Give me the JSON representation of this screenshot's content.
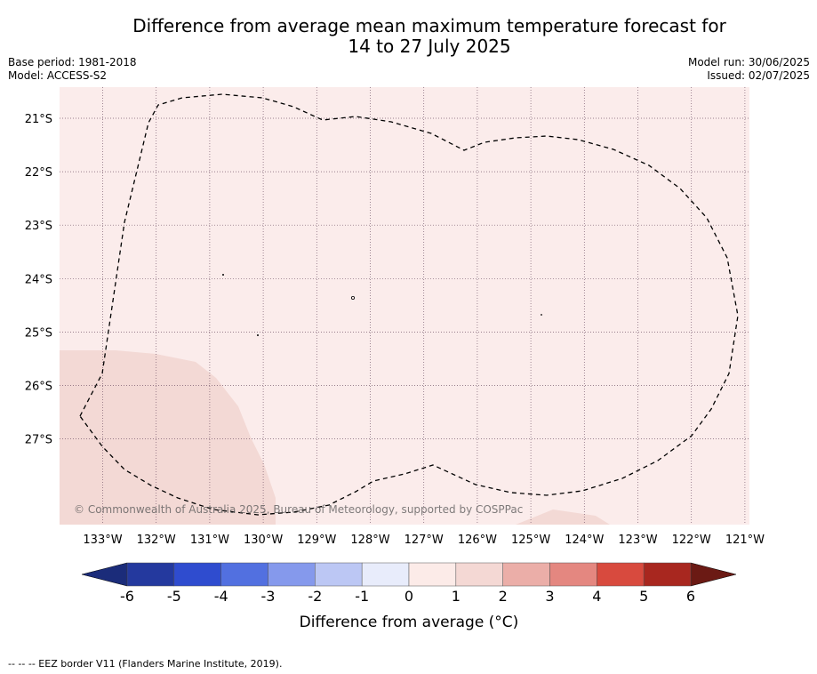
{
  "title_line1": "Difference from average mean maximum temperature forecast for",
  "title_line2": "14 to 27 July 2025",
  "base_period": "Base period: 1981-2018",
  "model": "Model: ACCESS-S2",
  "model_run": "Model run: 30/06/2025",
  "issued": "Issued: 02/07/2025",
  "map": {
    "lon_labels": [
      "133°W",
      "132°W",
      "131°W",
      "130°W",
      "129°W",
      "128°W",
      "127°W",
      "126°W",
      "125°W",
      "124°W",
      "123°W",
      "122°W",
      "121°W"
    ],
    "lat_labels": [
      "21°S",
      "22°S",
      "23°S",
      "24°S",
      "25°S",
      "26°S",
      "27°S"
    ],
    "background_category": "0 to 1",
    "patch_category": "1 to 2",
    "copyright": "© Commonwealth of Australia 2025, Bureau of Meteorology, supported by COSPPac",
    "colors": {
      "background": "#fbeceb",
      "patch": "#f3d9d5",
      "grid": "#7a5a6e",
      "eez": "#000000"
    }
  },
  "colorbar": {
    "title": "Difference from average (°C)",
    "ticks": [
      "-6",
      "-5",
      "-4",
      "-3",
      "-2",
      "-1",
      "0",
      "1",
      "2",
      "3",
      "4",
      "5",
      "6"
    ],
    "colors": [
      "#24399e",
      "#2f4ccf",
      "#5270e0",
      "#8599ec",
      "#bcc7f4",
      "#e8ecfb",
      "#fcebe8",
      "#f4d8d4",
      "#ebaea8",
      "#e48780",
      "#d84a3e",
      "#a8271f"
    ],
    "under_color": "#1b2c7a",
    "over_color": "#6b1a14"
  },
  "footer": "--  --  -- EEZ border V11 (Flanders Marine Institute, 2019)."
}
